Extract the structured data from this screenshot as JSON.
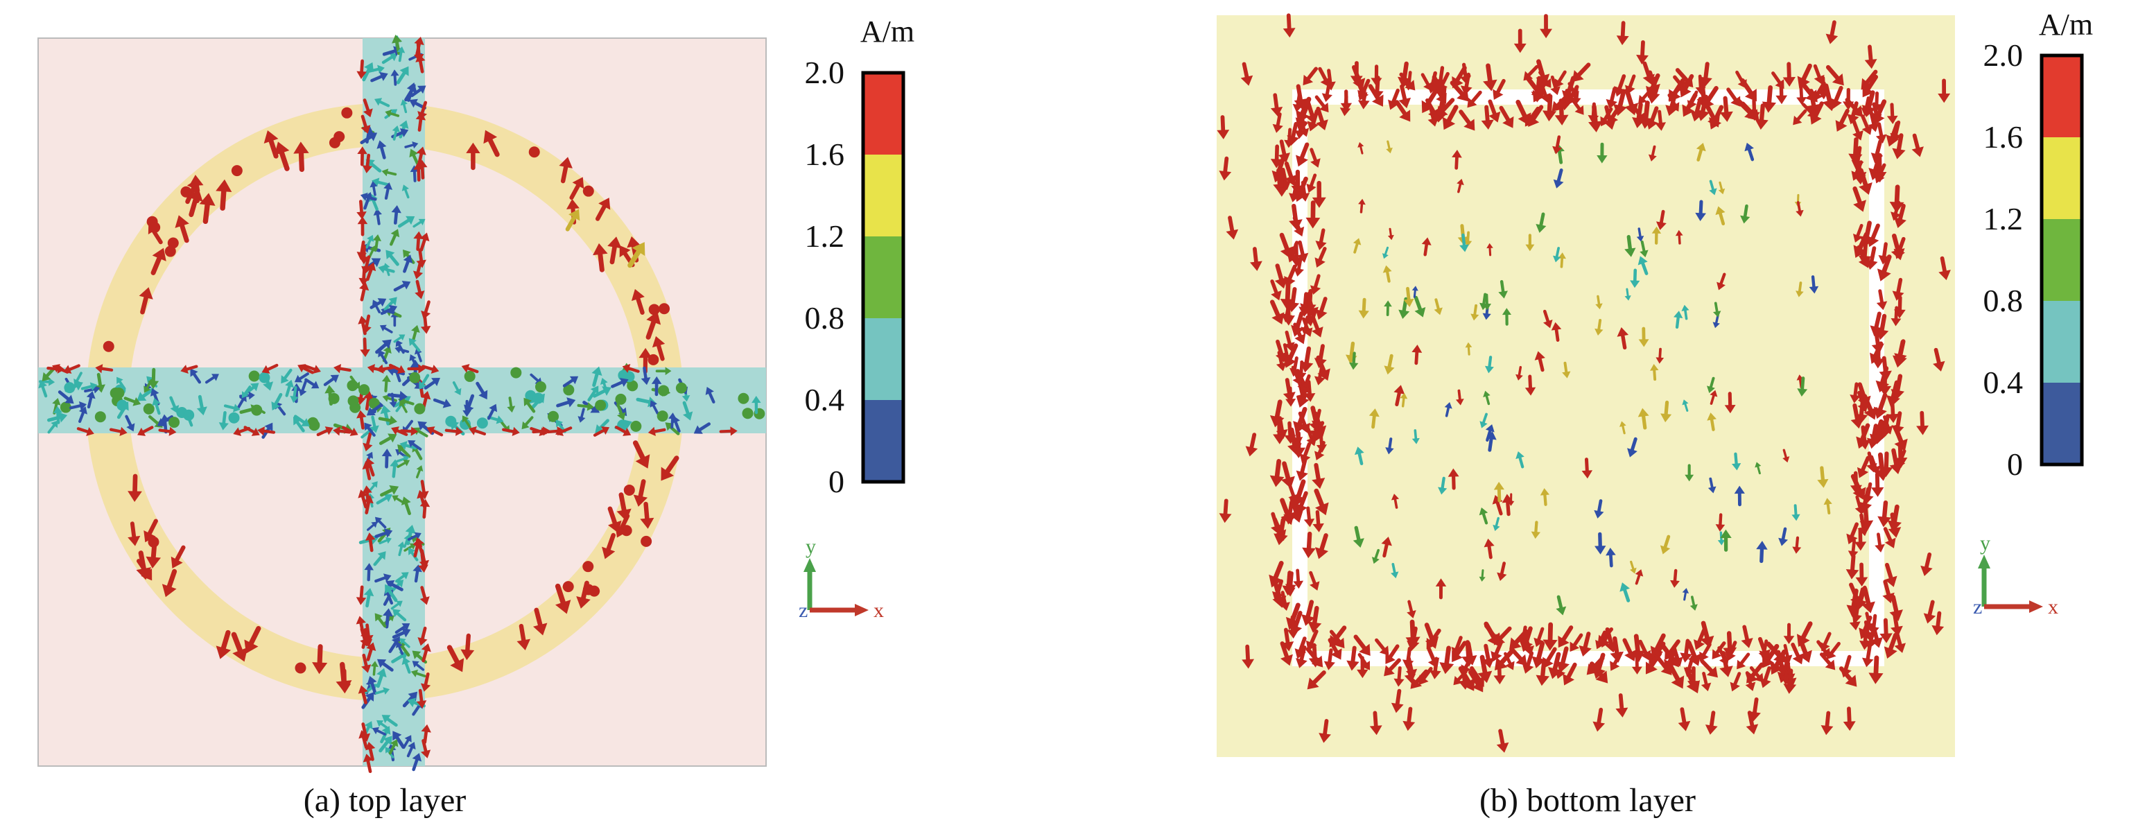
{
  "panels": [
    {
      "caption": "(a) top layer",
      "colorbar": {
        "unit": "A/m",
        "ticks": [
          "2.0",
          "1.6",
          "1.2",
          "0.8",
          "0.4",
          "0"
        ],
        "colors": [
          "#e23b2e",
          "#e8e34a",
          "#6fb63e",
          "#75c4c0",
          "#3d5a9c"
        ]
      },
      "axes": {
        "y": "y",
        "z": "z",
        "x": "x"
      }
    },
    {
      "caption": "(b) bottom layer",
      "colorbar": {
        "unit": "A/m",
        "ticks": [
          "2.0",
          "1.6",
          "1.2",
          "0.8",
          "0.4",
          "0"
        ],
        "colors": [
          "#e23b2e",
          "#e8e34a",
          "#6fb63e",
          "#75c4c0",
          "#3d5a9c"
        ]
      },
      "axes": {
        "y": "y",
        "z": "z",
        "x": "x"
      }
    }
  ],
  "colors": {
    "top_background": "#f7e6e3",
    "ring": "#f3e1a6",
    "cross_bars": "#a9d9d5",
    "bottom_background": "#f4f1c2",
    "slot": "#ffffff",
    "arrow_red": "#c0271f",
    "arrow_blue": "#2f4fa8",
    "arrow_green": "#4b9a3a",
    "arrow_cyan": "#37b3a9",
    "arrow_yellow": "#c9b034",
    "axis_y": "#4aa14a",
    "axis_x": "#c0392b",
    "axis_z": "#3b5bb0"
  }
}
